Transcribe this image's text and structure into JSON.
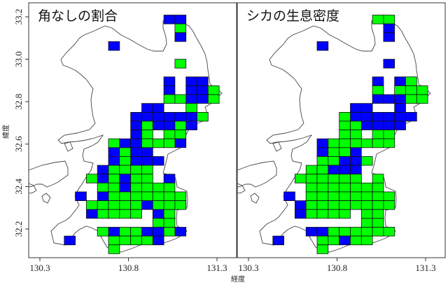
{
  "axes": {
    "xlabel": "経度",
    "ylabel": "緯度",
    "x_ticks": [
      "130.3",
      "130.8",
      "131.3"
    ],
    "x_tick_values": [
      130.3,
      130.8,
      131.3
    ],
    "y_ticks": [
      "33.2",
      "33.0",
      "32.8",
      "32.6",
      "32.4",
      "32.2"
    ],
    "y_tick_values": [
      33.2,
      33.0,
      32.8,
      32.6,
      32.4,
      32.2
    ],
    "xlim": [
      130.24,
      131.42
    ],
    "ylim": [
      32.04,
      33.26
    ]
  },
  "colors": {
    "blue": "#0000ff",
    "green": "#00ff00",
    "outline": "#444444"
  },
  "chart_data": {
    "type": "grid-map",
    "cell_size_deg": {
      "lon": 0.0625,
      "lat": 0.041667
    },
    "panels": [
      {
        "title": "角なしの割合",
        "rows": [
          {
            "lat": 33.2083,
            "blue": [
              131.0,
              131.0625
            ],
            "green": []
          },
          {
            "lat": 33.1667,
            "blue": [],
            "green": [
              131.0625
            ]
          },
          {
            "lat": 33.125,
            "blue": [
              131.0625
            ],
            "green": []
          },
          {
            "lat": 33.0833,
            "blue": [
              130.6875
            ],
            "green": []
          },
          {
            "lat": 33.0,
            "blue": [],
            "green": [
              131.0625
            ]
          },
          {
            "lat": 32.9167,
            "blue": [
              131.0,
              131.125,
              131.1875
            ],
            "green": []
          },
          {
            "lat": 32.875,
            "blue": [
              131.0,
              131.125,
              131.1875
            ],
            "green": [
              131.25
            ]
          },
          {
            "lat": 32.8333,
            "blue": [
              131.125,
              131.1875
            ],
            "green": [
              131.0,
              131.0625,
              131.25
            ]
          },
          {
            "lat": 32.7917,
            "blue": [
              130.875,
              130.9375
            ],
            "green": [
              131.125
            ]
          },
          {
            "lat": 32.75,
            "blue": [
              130.8125,
              130.875,
              130.9375,
              131.0,
              131.0625,
              131.125
            ],
            "green": [
              131.1875
            ]
          },
          {
            "lat": 32.7083,
            "blue": [
              130.8125,
              130.9375,
              131.0,
              131.125
            ],
            "green": [
              130.875,
              131.0625
            ]
          },
          {
            "lat": 32.6667,
            "blue": [
              130.8125
            ],
            "green": [
              130.875,
              131.0,
              131.0625
            ]
          },
          {
            "lat": 32.625,
            "blue": [
              130.75,
              130.8125,
              131.0625
            ],
            "green": [
              130.6875,
              130.875,
              130.9375,
              131.0
            ]
          },
          {
            "lat": 32.5833,
            "blue": [
              130.6875,
              130.8125,
              130.875
            ],
            "green": [
              130.75
            ]
          },
          {
            "lat": 32.5417,
            "blue": [
              130.6875,
              130.8125,
              130.875,
              130.9375
            ],
            "green": [
              130.75
            ]
          },
          {
            "lat": 32.5,
            "blue": [
              130.625
            ],
            "green": [
              130.6875,
              130.75,
              130.8125,
              130.875
            ]
          },
          {
            "lat": 32.4583,
            "blue": [
              130.625,
              130.75,
              131.0
            ],
            "green": [
              130.5625,
              130.6875,
              130.8125,
              130.875
            ]
          },
          {
            "lat": 32.4167,
            "blue": [
              130.75
            ],
            "green": [
              130.625,
              130.6875,
              130.8125,
              130.875,
              130.9375,
              131.0
            ]
          },
          {
            "lat": 32.375,
            "blue": [
              130.5,
              130.625
            ],
            "green": [
              130.6875,
              130.75,
              130.8125,
              130.875,
              130.9375,
              131.0,
              131.0625
            ]
          },
          {
            "lat": 32.3333,
            "blue": [
              130.875
            ],
            "green": [
              130.5625,
              130.625,
              130.6875,
              130.75,
              130.8125,
              130.9375,
              131.0,
              131.0625
            ]
          },
          {
            "lat": 32.2917,
            "blue": [
              130.5625,
              130.9375
            ],
            "green": [
              130.625,
              130.6875,
              130.75,
              130.8125,
              131.0
            ]
          },
          {
            "lat": 32.25,
            "blue": [],
            "green": [
              130.9375,
              131.0
            ]
          },
          {
            "lat": 32.2083,
            "blue": [
              130.6875,
              130.875,
              130.9375,
              131.0625
            ],
            "green": [
              130.625,
              130.75,
              130.8125,
              131.0
            ]
          },
          {
            "lat": 32.1667,
            "blue": [
              130.4375,
              130.9375
            ],
            "green": [
              130.6875,
              130.75,
              130.8125,
              130.875
            ]
          },
          {
            "lat": 32.125,
            "blue": [],
            "green": [
              130.6875
            ]
          }
        ]
      },
      {
        "title": "シカの生息密度",
        "rows": [
          {
            "lat": 33.2083,
            "blue": [],
            "green": [
              131.0,
              131.0625
            ]
          },
          {
            "lat": 33.1667,
            "blue": [
              131.0625
            ],
            "green": []
          },
          {
            "lat": 33.125,
            "blue": [
              131.0625
            ],
            "green": []
          },
          {
            "lat": 33.0833,
            "blue": [
              130.6875
            ],
            "green": []
          },
          {
            "lat": 33.0,
            "blue": [
              131.0625
            ],
            "green": []
          },
          {
            "lat": 32.9167,
            "blue": [
              131.0,
              131.125
            ],
            "green": [
              131.1875
            ]
          },
          {
            "lat": 32.875,
            "blue": [],
            "green": [
              131.0,
              131.125,
              131.1875,
              131.25
            ]
          },
          {
            "lat": 32.8333,
            "blue": [
              131.0,
              131.0625,
              131.125
            ],
            "green": [
              131.1875,
              131.25
            ]
          },
          {
            "lat": 32.7917,
            "blue": [
              130.875,
              130.9375,
              131.125
            ],
            "green": []
          },
          {
            "lat": 32.75,
            "blue": [
              130.875,
              130.9375,
              131.0,
              131.0625,
              131.125,
              131.1875
            ],
            "green": [
              130.8125
            ]
          },
          {
            "lat": 32.7083,
            "blue": [
              130.9375,
              131.0,
              131.0625,
              131.125
            ],
            "green": [
              130.8125,
              130.875
            ]
          },
          {
            "lat": 32.6667,
            "blue": [],
            "green": [
              130.8125,
              130.875,
              131.0,
              131.0625
            ]
          },
          {
            "lat": 32.625,
            "blue": [
              130.6875
            ],
            "green": [
              130.75,
              130.8125,
              130.875,
              130.9375,
              131.0,
              131.0625
            ]
          },
          {
            "lat": 32.5833,
            "blue": [
              130.6875,
              130.875
            ],
            "green": [
              130.75,
              130.8125
            ]
          },
          {
            "lat": 32.5417,
            "blue": [
              130.8125,
              130.875
            ],
            "green": [
              130.6875,
              130.75,
              130.9375
            ]
          },
          {
            "lat": 32.5,
            "blue": [
              130.75,
              130.8125,
              130.875
            ],
            "green": [
              130.625,
              130.6875
            ]
          },
          {
            "lat": 32.4583,
            "blue": [],
            "green": [
              130.5625,
              130.625,
              130.6875,
              130.75,
              130.8125,
              130.875,
              131.0
            ]
          },
          {
            "lat": 32.4167,
            "blue": [],
            "green": [
              130.625,
              130.6875,
              130.75,
              130.8125,
              130.875,
              130.9375,
              131.0
            ]
          },
          {
            "lat": 32.375,
            "blue": [
              130.5
            ],
            "green": [
              130.625,
              130.6875,
              130.75,
              130.8125,
              130.875,
              130.9375,
              131.0,
              131.0625
            ]
          },
          {
            "lat": 32.3333,
            "blue": [
              130.5625
            ],
            "green": [
              130.625,
              130.6875,
              130.75,
              130.8125,
              130.875,
              130.9375,
              131.0,
              131.0625
            ]
          },
          {
            "lat": 32.2917,
            "blue": [
              130.5625
            ],
            "green": [
              130.625,
              130.6875,
              130.75,
              130.8125,
              130.9375,
              131.0
            ]
          },
          {
            "lat": 32.25,
            "blue": [],
            "green": [
              130.9375,
              131.0
            ]
          },
          {
            "lat": 32.2083,
            "blue": [
              130.625,
              130.6875
            ],
            "green": [
              130.75,
              130.8125,
              130.875,
              130.9375,
              131.0,
              131.0625
            ]
          },
          {
            "lat": 32.1667,
            "blue": [
              130.4375,
              130.8125
            ],
            "green": [
              130.6875,
              130.75,
              130.875,
              130.9375
            ]
          },
          {
            "lat": 32.125,
            "blue": [],
            "green": [
              130.6875
            ]
          }
        ]
      }
    ]
  }
}
